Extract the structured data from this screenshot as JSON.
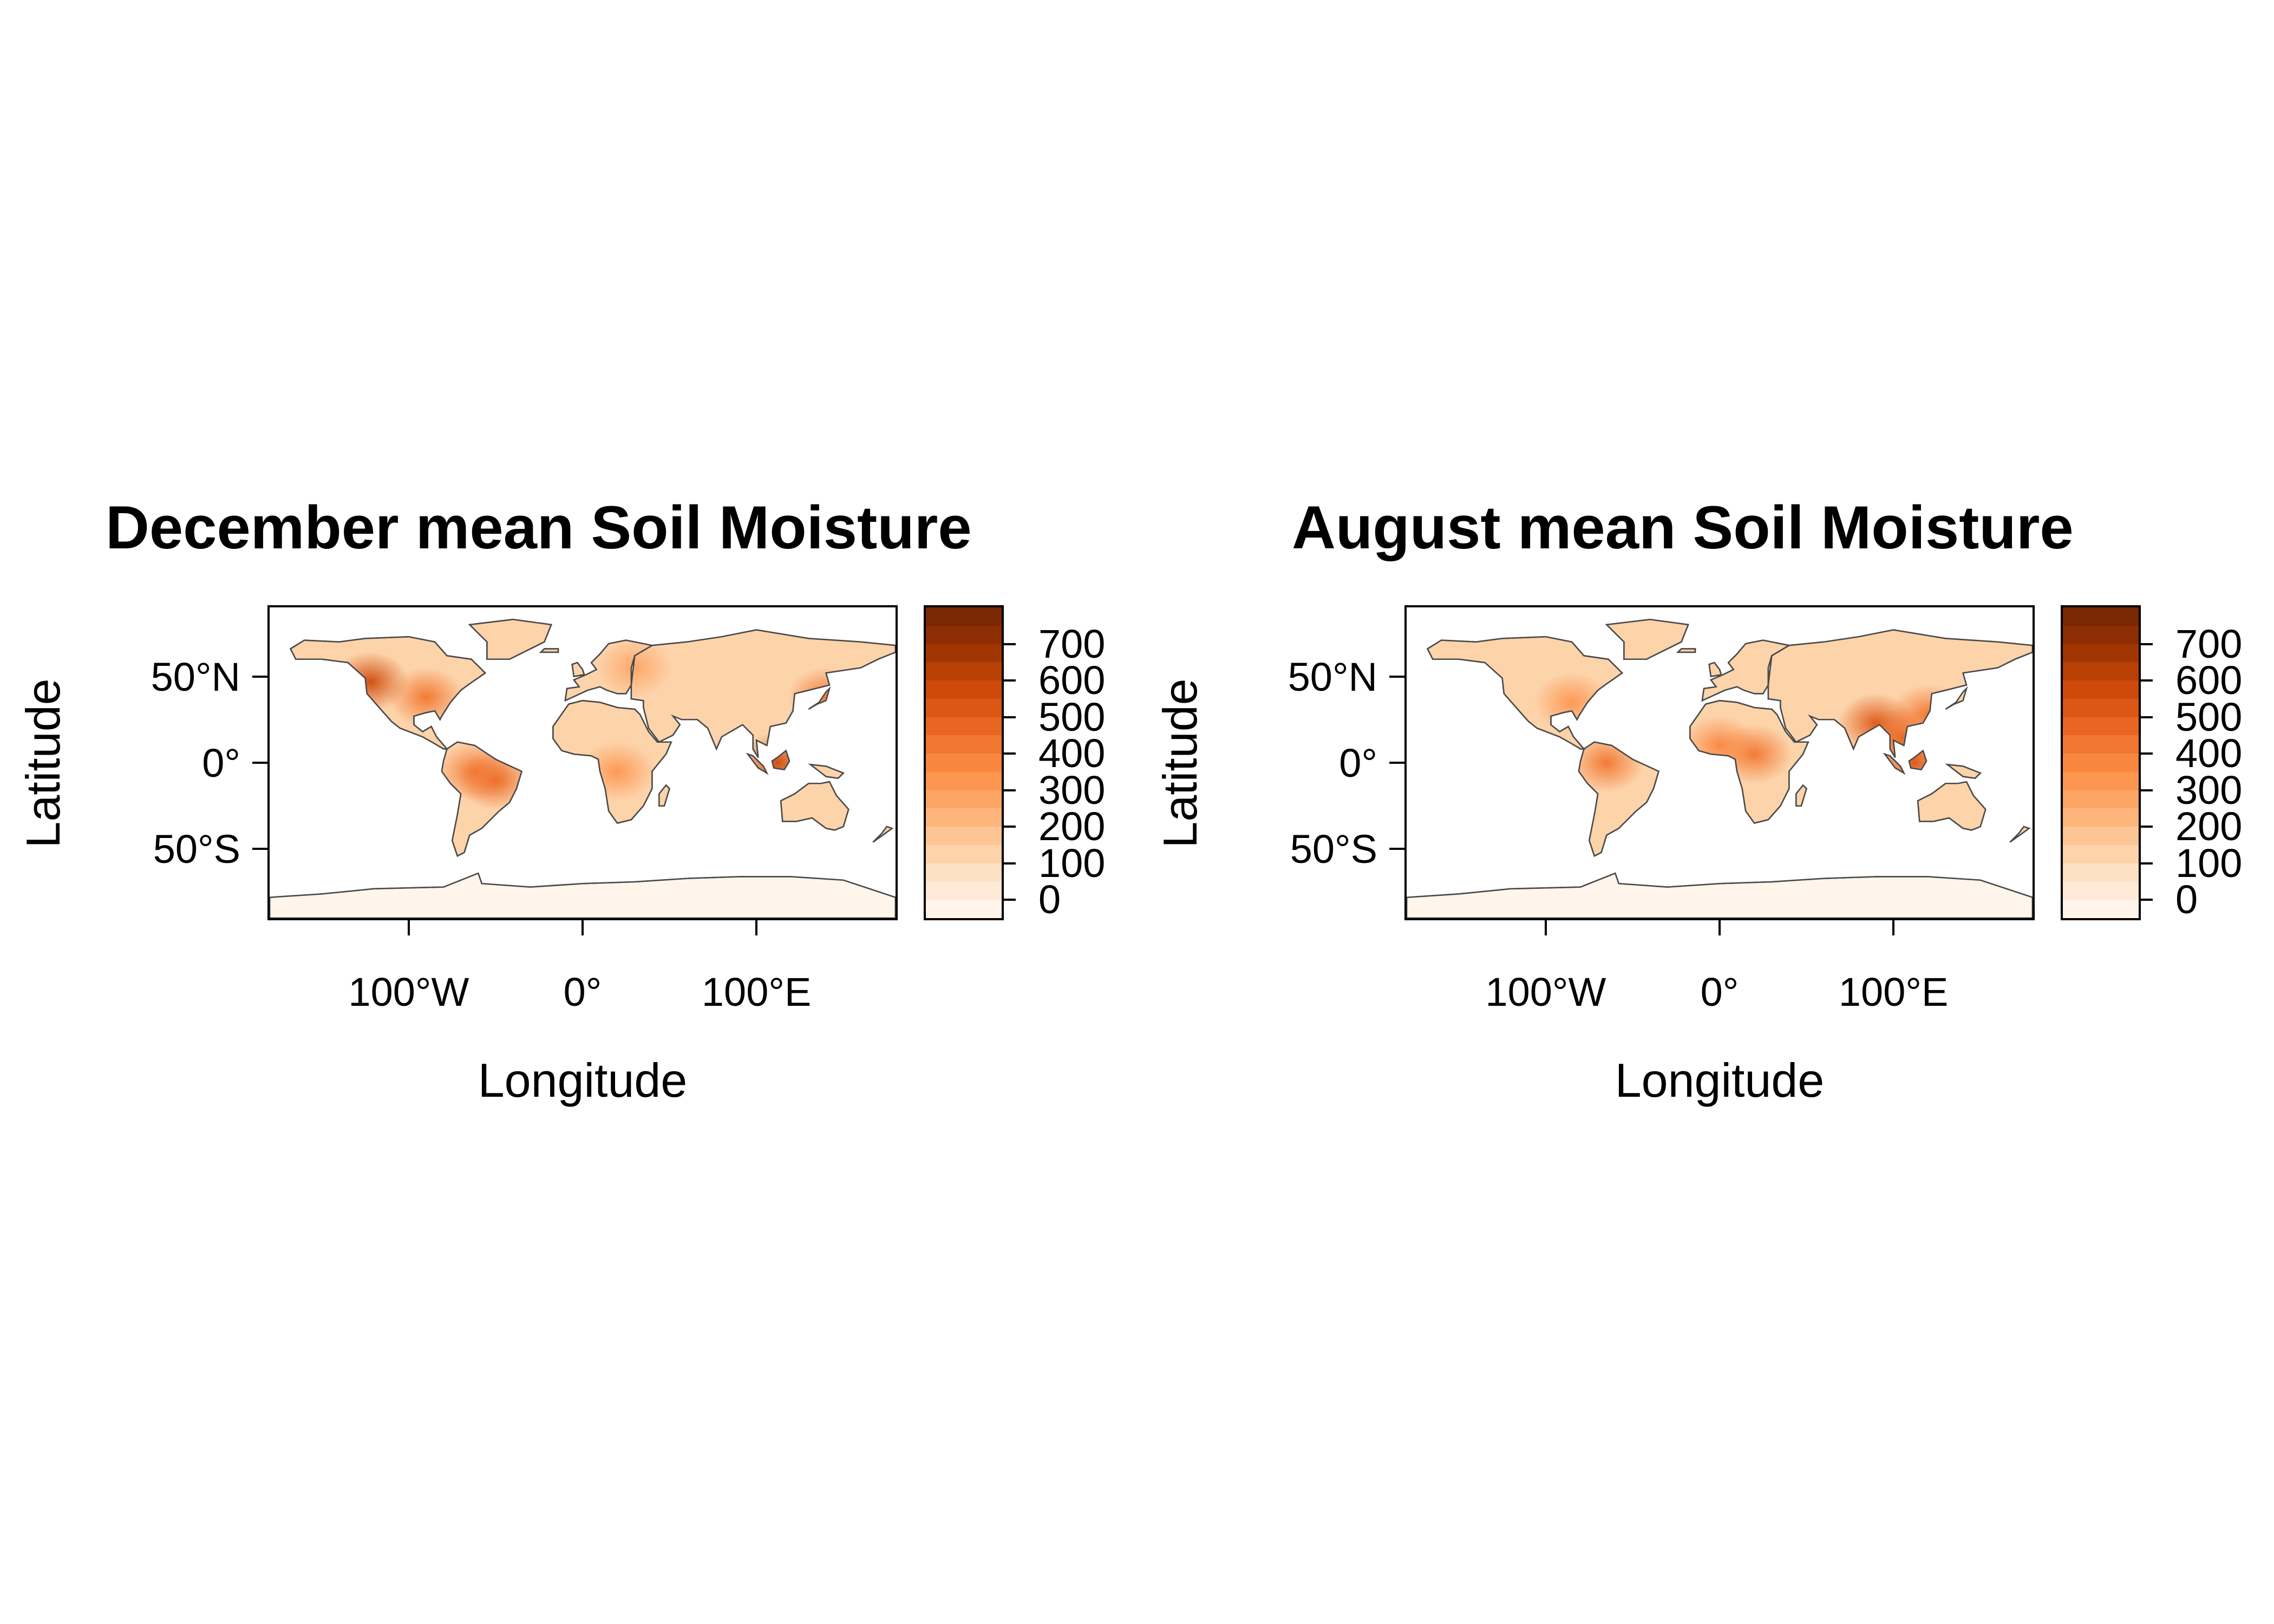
{
  "maps": [
    {
      "title": "December mean Soil Moisture",
      "xlabel": "Longitude",
      "ylabel": "Latitude",
      "x_ticks": [
        {
          "value": -100,
          "label": "100°W"
        },
        {
          "value": 0,
          "label": "0°"
        },
        {
          "value": 100,
          "label": "100°E"
        }
      ],
      "y_ticks": [
        {
          "value": 50,
          "label": "50°N"
        },
        {
          "value": 0,
          "label": "0°"
        },
        {
          "value": -50,
          "label": "50°S"
        }
      ],
      "xlim": [
        -180,
        180
      ],
      "ylim": [
        -90,
        90
      ],
      "colorbar": {
        "ticks": [
          0,
          100,
          200,
          300,
          400,
          500,
          600,
          700
        ],
        "range": [
          -50,
          800
        ],
        "colors": [
          "#fff5eb",
          "#feead6",
          "#fee0c2",
          "#fdd3aa",
          "#fdc593",
          "#fdb57b",
          "#fda565",
          "#fd9650",
          "#f8863f",
          "#f1762f",
          "#e96622",
          "#dc5714",
          "#ce4a0a",
          "#b84005",
          "#a13603",
          "#8c2d04",
          "#7a2703"
        ]
      },
      "hotspots": [
        {
          "lon": -50,
          "lat": -10,
          "level": 0.62
        },
        {
          "lon": -62,
          "lat": -5,
          "level": 0.55
        },
        {
          "lon": -90,
          "lat": 38,
          "level": 0.55
        },
        {
          "lon": -122,
          "lat": 47,
          "level": 0.75
        },
        {
          "lon": 112,
          "lat": 0,
          "level": 0.72
        },
        {
          "lon": 20,
          "lat": -5,
          "level": 0.45
        },
        {
          "lon": 30,
          "lat": 55,
          "level": 0.38
        },
        {
          "lon": 140,
          "lat": 38,
          "level": 0.55
        }
      ]
    },
    {
      "title": "August mean Soil Moisture",
      "xlabel": "Longitude",
      "ylabel": "Latitude",
      "x_ticks": [
        {
          "value": -100,
          "label": "100°W"
        },
        {
          "value": 0,
          "label": "0°"
        },
        {
          "value": 100,
          "label": "100°E"
        }
      ],
      "y_ticks": [
        {
          "value": 50,
          "label": "50°N"
        },
        {
          "value": 0,
          "label": "0°"
        },
        {
          "value": -50,
          "label": "50°S"
        }
      ],
      "xlim": [
        -180,
        180
      ],
      "ylim": [
        -90,
        90
      ],
      "colorbar": {
        "ticks": [
          0,
          100,
          200,
          300,
          400,
          500,
          600,
          700
        ],
        "range": [
          -50,
          800
        ],
        "colors": [
          "#fff5eb",
          "#feead6",
          "#fee0c2",
          "#fdd3aa",
          "#fdc593",
          "#fdb57b",
          "#fda565",
          "#fd9650",
          "#f8863f",
          "#f1762f",
          "#e96622",
          "#dc5714",
          "#ce4a0a",
          "#b84005",
          "#a13603",
          "#8c2d04",
          "#7a2703"
        ]
      },
      "hotspots": [
        {
          "lon": -65,
          "lat": 0,
          "level": 0.58
        },
        {
          "lon": 90,
          "lat": 23,
          "level": 0.7
        },
        {
          "lon": 105,
          "lat": 15,
          "level": 0.65
        },
        {
          "lon": 112,
          "lat": 0,
          "level": 0.7
        },
        {
          "lon": -85,
          "lat": 35,
          "level": 0.45
        },
        {
          "lon": 20,
          "lat": 5,
          "level": 0.55
        },
        {
          "lon": 0,
          "lat": 10,
          "level": 0.5
        },
        {
          "lon": 120,
          "lat": 28,
          "level": 0.55
        }
      ]
    }
  ]
}
